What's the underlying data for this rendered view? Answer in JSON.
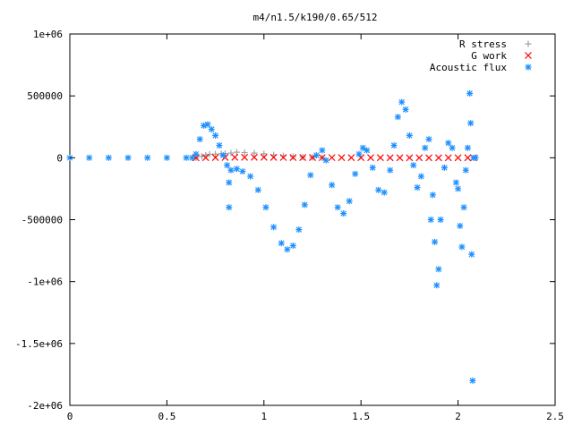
{
  "chart_data": {
    "type": "scatter",
    "title": "m4/n1.5/k190/0.65/512",
    "xlabel": "",
    "ylabel": "",
    "xlim": [
      0,
      2.5
    ],
    "ylim": [
      -2000000,
      1000000
    ],
    "x_ticks": [
      {
        "value": 0,
        "label": "0"
      },
      {
        "value": 0.5,
        "label": "0.5"
      },
      {
        "value": 1,
        "label": "1"
      },
      {
        "value": 1.5,
        "label": "1.5"
      },
      {
        "value": 2,
        "label": "2"
      },
      {
        "value": 2.5,
        "label": "2.5"
      }
    ],
    "y_ticks": [
      {
        "value": 1000000,
        "label": "1e+06"
      },
      {
        "value": 500000,
        "label": "500000"
      },
      {
        "value": 0,
        "label": "0"
      },
      {
        "value": -500000,
        "label": "-500000"
      },
      {
        "value": -1000000,
        "label": "-1e+06"
      },
      {
        "value": -1500000,
        "label": "-1.5e+06"
      },
      {
        "value": -2000000,
        "label": "-2e+06"
      }
    ],
    "grid": false,
    "legend_position": "top-right",
    "series": [
      {
        "name": "R stress",
        "marker": "plus",
        "color": "#a0a0a0",
        "points": [
          [
            0.65,
            0
          ],
          [
            0.68,
            12000
          ],
          [
            0.7,
            22000
          ],
          [
            0.72,
            28000
          ],
          [
            0.75,
            30000
          ],
          [
            0.78,
            32000
          ],
          [
            0.8,
            34000
          ],
          [
            0.83,
            38000
          ],
          [
            0.86,
            45000
          ],
          [
            0.9,
            42000
          ],
          [
            0.95,
            38000
          ],
          [
            1.0,
            32000
          ],
          [
            1.05,
            24000
          ],
          [
            1.1,
            16000
          ],
          [
            1.15,
            10000
          ],
          [
            1.2,
            6000
          ],
          [
            1.25,
            3000
          ],
          [
            1.3,
            0
          ]
        ]
      },
      {
        "name": "G work",
        "marker": "cross",
        "color": "#ff0000",
        "points": [
          [
            0.65,
            0
          ],
          [
            0.7,
            1000
          ],
          [
            0.75,
            2000
          ],
          [
            0.8,
            3000
          ],
          [
            0.85,
            4000
          ],
          [
            0.9,
            4000
          ],
          [
            0.95,
            4000
          ],
          [
            1.0,
            3500
          ],
          [
            1.05,
            3000
          ],
          [
            1.1,
            2500
          ],
          [
            1.15,
            2000
          ],
          [
            1.2,
            2000
          ],
          [
            1.25,
            2000
          ],
          [
            1.3,
            1500
          ],
          [
            1.35,
            1500
          ],
          [
            1.4,
            1000
          ],
          [
            1.45,
            1000
          ],
          [
            1.5,
            1000
          ],
          [
            1.55,
            1000
          ],
          [
            1.6,
            1000
          ],
          [
            1.65,
            500
          ],
          [
            1.7,
            500
          ],
          [
            1.75,
            500
          ],
          [
            1.8,
            500
          ],
          [
            1.85,
            500
          ],
          [
            1.9,
            500
          ],
          [
            1.95,
            500
          ],
          [
            2.0,
            500
          ],
          [
            2.05,
            500
          ],
          [
            2.08,
            0
          ]
        ]
      },
      {
        "name": "Acoustic flux",
        "marker": "star",
        "color": "#1e90ff",
        "points": [
          [
            0.0,
            0
          ],
          [
            0.1,
            0
          ],
          [
            0.2,
            0
          ],
          [
            0.3,
            0
          ],
          [
            0.4,
            0
          ],
          [
            0.5,
            0
          ],
          [
            0.6,
            0
          ],
          [
            0.63,
            0
          ],
          [
            0.65,
            30000
          ],
          [
            0.67,
            150000
          ],
          [
            0.69,
            260000
          ],
          [
            0.71,
            270000
          ],
          [
            0.73,
            230000
          ],
          [
            0.75,
            180000
          ],
          [
            0.77,
            100000
          ],
          [
            0.79,
            20000
          ],
          [
            0.81,
            -60000
          ],
          [
            0.83,
            -100000
          ],
          [
            0.86,
            -90000
          ],
          [
            0.89,
            -110000
          ],
          [
            0.93,
            -150000
          ],
          [
            0.97,
            -260000
          ],
          [
            1.01,
            -400000
          ],
          [
            1.05,
            -560000
          ],
          [
            1.09,
            -690000
          ],
          [
            1.12,
            -740000
          ],
          [
            1.15,
            -710000
          ],
          [
            1.18,
            -580000
          ],
          [
            1.21,
            -380000
          ],
          [
            1.24,
            -140000
          ],
          [
            1.27,
            20000
          ],
          [
            1.3,
            60000
          ],
          [
            1.32,
            -20000
          ],
          [
            1.35,
            -220000
          ],
          [
            1.38,
            -400000
          ],
          [
            1.41,
            -450000
          ],
          [
            1.44,
            -350000
          ],
          [
            1.47,
            -130000
          ],
          [
            1.49,
            30000
          ],
          [
            1.51,
            80000
          ],
          [
            1.53,
            60000
          ],
          [
            1.56,
            -80000
          ],
          [
            1.59,
            -260000
          ],
          [
            1.62,
            -280000
          ],
          [
            1.65,
            -100000
          ],
          [
            1.67,
            100000
          ],
          [
            1.69,
            330000
          ],
          [
            1.71,
            450000
          ],
          [
            1.73,
            390000
          ],
          [
            1.75,
            180000
          ],
          [
            1.77,
            -60000
          ],
          [
            1.79,
            -240000
          ],
          [
            1.81,
            -150000
          ],
          [
            1.83,
            80000
          ],
          [
            1.85,
            150000
          ],
          [
            1.87,
            -300000
          ],
          [
            1.88,
            -680000
          ],
          [
            1.89,
            -1030000
          ],
          [
            1.9,
            -900000
          ],
          [
            1.91,
            -500000
          ],
          [
            1.93,
            -80000
          ],
          [
            1.95,
            120000
          ],
          [
            1.97,
            80000
          ],
          [
            1.99,
            -200000
          ],
          [
            2.01,
            -550000
          ],
          [
            2.02,
            -720000
          ],
          [
            2.03,
            -400000
          ],
          [
            2.04,
            -100000
          ],
          [
            2.05,
            80000
          ],
          [
            2.06,
            520000
          ],
          [
            2.065,
            280000
          ],
          [
            2.07,
            -780000
          ],
          [
            2.075,
            -1800000
          ],
          [
            2.08,
            0
          ],
          [
            2.09,
            0
          ],
          [
            0.82,
            -400000
          ],
          [
            0.82,
            -200000
          ],
          [
            1.86,
            -500000
          ],
          [
            2.0,
            -250000
          ]
        ]
      }
    ]
  }
}
